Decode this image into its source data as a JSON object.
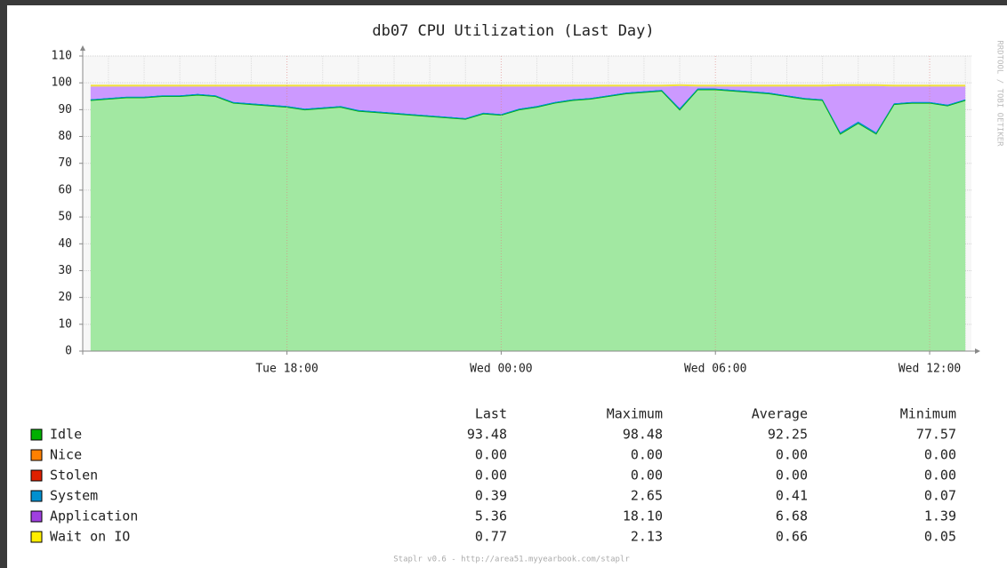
{
  "chart_data": {
    "type": "stacked_area",
    "title": "db07 CPU Utilization (Last Day)",
    "side_label": "RRDTOOL / TOBI OETIKER",
    "footer": "Staplr v0.6 - http://area51.myyearbook.com/staplr",
    "x": [
      12.5,
      13,
      13.5,
      14,
      14.5,
      15,
      15.5,
      16,
      16.5,
      17,
      17.5,
      18,
      18.5,
      19,
      19.5,
      20,
      20.5,
      21,
      21.5,
      22,
      22.5,
      23,
      23.5,
      24,
      24.5,
      25,
      25.5,
      26,
      26.5,
      27,
      27.5,
      28,
      28.5,
      29,
      29.5,
      30,
      30.5,
      31,
      31.5,
      32,
      32.5,
      33,
      33.5,
      34,
      34.5,
      35,
      35.5,
      36,
      36.5,
      37
    ],
    "xlim": [
      12.28,
      37.17
    ],
    "xticks": [
      {
        "value": 18,
        "label": "Tue 18:00"
      },
      {
        "value": 24,
        "label": "Wed 00:00"
      },
      {
        "value": 30,
        "label": "Wed 06:00"
      },
      {
        "value": 36,
        "label": "Wed 12:00"
      }
    ],
    "xminorticks": [
      13,
      14,
      15,
      16,
      17,
      19,
      20,
      21,
      22,
      23,
      25,
      26,
      27,
      28,
      29,
      31,
      32,
      33,
      34,
      35,
      37
    ],
    "ylim": [
      0,
      110
    ],
    "yticks": [
      0,
      10,
      20,
      30,
      40,
      50,
      60,
      70,
      80,
      90,
      100,
      110
    ],
    "grid": true,
    "series": [
      {
        "name": "Idle",
        "color": "#00b000",
        "fill": "#a2e8a2",
        "values": [
          93.5,
          94,
          94.5,
          94.5,
          95,
          95,
          95.5,
          95,
          92.5,
          92,
          91.5,
          91,
          90,
          90.5,
          91,
          89.5,
          89,
          88.5,
          88,
          87.5,
          87,
          86.5,
          88.5,
          88,
          90,
          91,
          92.5,
          93.5,
          94,
          95,
          96,
          96.5,
          97,
          90,
          97.5,
          97.5,
          97,
          96.5,
          96,
          95,
          94,
          93.5,
          81,
          85,
          81,
          92,
          92.5,
          92.5,
          91.5,
          93.5
        ]
      },
      {
        "name": "Nice",
        "color": "#ff8000",
        "fill": "#ff8000",
        "values": [
          0,
          0,
          0,
          0,
          0,
          0,
          0,
          0,
          0,
          0,
          0,
          0,
          0,
          0,
          0,
          0,
          0,
          0,
          0,
          0,
          0,
          0,
          0,
          0,
          0,
          0,
          0,
          0,
          0,
          0,
          0,
          0,
          0,
          0,
          0,
          0,
          0,
          0,
          0,
          0,
          0,
          0,
          0,
          0,
          0,
          0,
          0,
          0,
          0,
          0
        ]
      },
      {
        "name": "Stolen",
        "color": "#e02000",
        "fill": "#e02000",
        "values": [
          0,
          0,
          0,
          0,
          0,
          0,
          0,
          0,
          0,
          0,
          0,
          0,
          0,
          0,
          0,
          0,
          0,
          0,
          0,
          0,
          0,
          0,
          0,
          0,
          0,
          0,
          0,
          0,
          0,
          0,
          0,
          0,
          0,
          0,
          0,
          0,
          0,
          0,
          0,
          0,
          0,
          0,
          0,
          0,
          0,
          0,
          0,
          0,
          0,
          0
        ]
      },
      {
        "name": "System",
        "color": "#0090d0",
        "fill": "#0090d0",
        "values": [
          0.4,
          0.4,
          0.4,
          0.4,
          0.4,
          0.4,
          0.4,
          0.4,
          0.4,
          0.4,
          0.4,
          0.4,
          0.4,
          0.4,
          0.4,
          0.4,
          0.4,
          0.4,
          0.4,
          0.4,
          0.4,
          0.4,
          0.4,
          0.4,
          0.4,
          0.4,
          0.4,
          0.4,
          0.4,
          0.4,
          0.4,
          0.4,
          0.4,
          0.6,
          0.4,
          0.4,
          0.4,
          0.4,
          0.4,
          0.4,
          0.4,
          0.4,
          0.6,
          0.6,
          0.6,
          0.4,
          0.4,
          0.4,
          0.4,
          0.4
        ]
      },
      {
        "name": "Application",
        "color": "#a040e0",
        "fill": "#cc99ff",
        "values": [
          4.7,
          4.2,
          3.7,
          3.7,
          3.2,
          3.2,
          2.7,
          3.2,
          5.7,
          6.2,
          6.7,
          7.2,
          8.2,
          7.7,
          7.2,
          8.7,
          9.2,
          9.7,
          10.2,
          10.7,
          11.2,
          11.7,
          9.7,
          10.2,
          8.2,
          7.2,
          5.7,
          4.7,
          4.2,
          3.2,
          2.2,
          1.7,
          1.2,
          8.2,
          0.7,
          0.7,
          1.2,
          1.7,
          2.2,
          3.2,
          4.2,
          4.7,
          17.2,
          13.2,
          17.2,
          6.2,
          5.7,
          5.7,
          6.7,
          4.7
        ]
      },
      {
        "name": "Wait on IO",
        "color": "#ffee00",
        "fill": "#f0e040",
        "values": [
          0.7,
          0.7,
          0.7,
          0.7,
          0.7,
          0.7,
          0.7,
          0.7,
          0.7,
          0.7,
          0.7,
          0.7,
          0.7,
          0.7,
          0.7,
          0.7,
          0.7,
          0.7,
          0.7,
          0.7,
          0.7,
          0.7,
          0.7,
          0.7,
          0.7,
          0.7,
          0.7,
          0.7,
          0.7,
          0.7,
          0.7,
          0.7,
          0.7,
          0.7,
          0.7,
          0.7,
          0.7,
          0.7,
          0.7,
          0.7,
          0.7,
          0.7,
          0.7,
          0.7,
          0.7,
          0.7,
          0.7,
          0.7,
          0.7,
          0.7
        ]
      }
    ],
    "legend_table": {
      "columns": [
        "Last",
        "Maximum",
        "Average",
        "Minimum"
      ],
      "rows": [
        [
          "93.48",
          "98.48",
          "92.25",
          "77.57"
        ],
        [
          "0.00",
          "0.00",
          "0.00",
          "0.00"
        ],
        [
          "0.00",
          "0.00",
          "0.00",
          "0.00"
        ],
        [
          "0.39",
          "2.65",
          "0.41",
          "0.07"
        ],
        [
          "5.36",
          "18.10",
          "6.68",
          "1.39"
        ],
        [
          "0.77",
          "2.13",
          "0.66",
          "0.05"
        ]
      ]
    }
  }
}
